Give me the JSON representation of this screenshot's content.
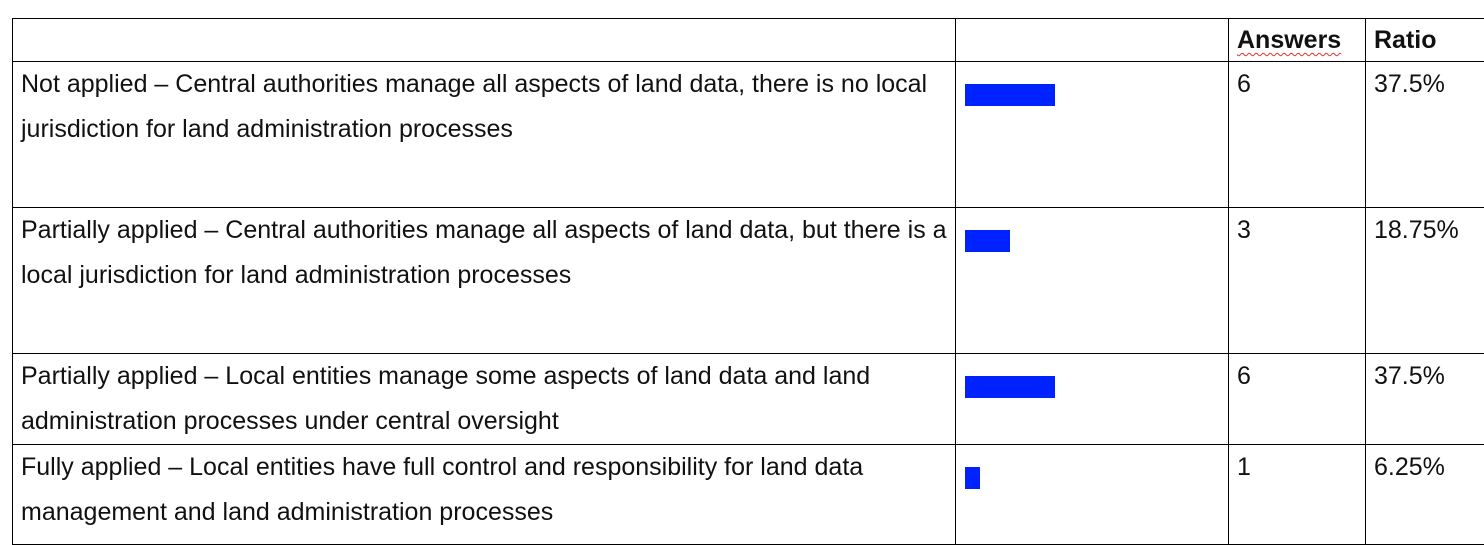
{
  "table": {
    "header": [
      "Answers",
      "Ratio"
    ],
    "rows": [
      {
        "label": "Not applied – Central authorities manage all aspects of land data, there is no local jurisdiction for land administration processes",
        "answers": 6,
        "ratio": "37.5%"
      },
      {
        "label": "Partially applied – Central authorities manage all aspects of land data, but there is a local jurisdiction for land administration processes",
        "answers": 3,
        "ratio": "18.75%"
      },
      {
        "label": "Partially applied – Local entities manage some aspects of land data and land administration processes under central oversight",
        "answers": 6,
        "ratio": "37.5%"
      },
      {
        "label": "Fully applied – Local entities have full control and responsibility for land data management and land administration processes",
        "answers": 1,
        "ratio": "6.25%"
      }
    ]
  }
}
